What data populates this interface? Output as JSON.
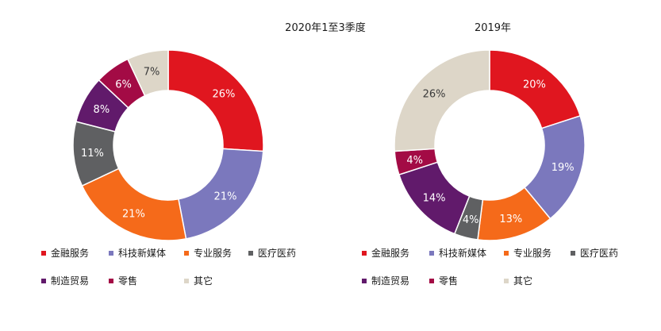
{
  "chart_data": [
    {
      "type": "pie",
      "title": "2020年1至3季度",
      "categories": [
        "金融服务",
        "科技新媒体",
        "专业服务",
        "医疗医药",
        "制造贸易",
        "零售",
        "其它"
      ],
      "values": [
        26,
        21,
        21,
        11,
        8,
        6,
        7
      ],
      "labels": [
        "26%",
        "21%",
        "21%",
        "11%",
        "8%",
        "6%",
        "7%"
      ],
      "colors": [
        "#e0161f",
        "#7b78bd",
        "#f56a1a",
        "#5f6062",
        "#611a6b",
        "#a30b45",
        "#ddd6c8"
      ],
      "donut": true,
      "legend_position": "bottom"
    },
    {
      "type": "pie",
      "title": "2019年",
      "categories": [
        "金融服务",
        "科技新媒体",
        "专业服务",
        "医疗医药",
        "制造贸易",
        "零售",
        "其它"
      ],
      "values": [
        20,
        19,
        13,
        4,
        14,
        4,
        26
      ],
      "labels": [
        "20%",
        "19%",
        "13%",
        "4%",
        "14%",
        "4%",
        "26%"
      ],
      "colors": [
        "#e0161f",
        "#7b78bd",
        "#f56a1a",
        "#5f6062",
        "#611a6b",
        "#a30b45",
        "#ddd6c8"
      ],
      "donut": true,
      "legend_position": "bottom"
    }
  ]
}
